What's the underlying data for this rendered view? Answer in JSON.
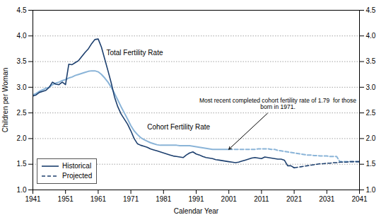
{
  "chart_data": {
    "type": "line",
    "xlabel": "Calendar Year",
    "ylabel": "Children per Woman",
    "xlim": [
      1941,
      2041
    ],
    "xticks": [
      1941,
      1951,
      1961,
      1971,
      1981,
      1991,
      2001,
      2011,
      2021,
      2031,
      2041
    ],
    "ylim": [
      1.0,
      4.5
    ],
    "yticks": [
      {
        "value": 1.0,
        "label": "1.0"
      },
      1.5,
      {
        "value": 2.0,
        "label": "2.0"
      },
      2.5,
      {
        "value": 3.0,
        "label": "3.0"
      },
      3.5,
      {
        "value": 4.0,
        "label": "4.0"
      },
      4.5
    ],
    "grid": true,
    "legend": "lower left",
    "legend_entries": [
      {
        "name": "Historical",
        "line_style": "solid",
        "color": "#1c3f6e"
      },
      {
        "name": "Projected",
        "line_style": "dashed",
        "color": "#1c3f6e"
      }
    ],
    "series": [
      {
        "name": "Cohort Fertility Rate",
        "color": "#8ab4d8",
        "label_x": 1976,
        "label_y": 2.18,
        "segments": [
          {
            "line_style": "solid",
            "x": [
              1941,
              1942,
              1943,
              1944,
              1945,
              1946,
              1947,
              1948,
              1949,
              1950,
              1951,
              1952,
              1953,
              1954,
              1955,
              1956,
              1957,
              1958,
              1959,
              1960,
              1961,
              1962,
              1963,
              1964,
              1965,
              1966,
              1967,
              1968,
              1969,
              1970,
              1971,
              1972,
              1973,
              1974,
              1975,
              1976,
              1977,
              1978,
              1979,
              1980,
              1981,
              1982,
              1983,
              1984,
              1985,
              1986,
              1987,
              1988,
              1989,
              1990,
              1991,
              1992,
              1993,
              1994,
              1995,
              1996,
              1997,
              1998,
              1999,
              2000,
              2001
            ],
            "values": [
              2.85,
              2.88,
              2.92,
              2.95,
              2.98,
              3.0,
              3.05,
              3.08,
              3.1,
              3.13,
              3.15,
              3.18,
              3.2,
              3.23,
              3.25,
              3.27,
              3.29,
              3.31,
              3.32,
              3.32,
              3.3,
              3.25,
              3.18,
              3.1,
              3.0,
              2.88,
              2.75,
              2.62,
              2.5,
              2.38,
              2.25,
              2.15,
              2.08,
              2.02,
              1.98,
              1.95,
              1.92,
              1.9,
              1.88,
              1.87,
              1.87,
              1.87,
              1.87,
              1.87,
              1.87,
              1.86,
              1.86,
              1.86,
              1.86,
              1.85,
              1.84,
              1.83,
              1.82,
              1.81,
              1.8,
              1.79,
              1.79,
              1.79,
              1.79,
              1.79,
              1.79
            ]
          },
          {
            "line_style": "dashed",
            "x": [
              2001,
              2002,
              2003,
              2004,
              2005,
              2006,
              2007,
              2008,
              2009,
              2010,
              2011,
              2012,
              2013,
              2014,
              2015,
              2016,
              2017,
              2018,
              2019,
              2020,
              2021,
              2022,
              2023,
              2024,
              2025,
              2026,
              2027,
              2028,
              2029,
              2030,
              2031,
              2032,
              2033,
              2034,
              2035,
              2036,
              2037,
              2038,
              2039,
              2040,
              2041
            ],
            "values": [
              1.79,
              1.79,
              1.79,
              1.79,
              1.79,
              1.79,
              1.79,
              1.79,
              1.79,
              1.8,
              1.8,
              1.8,
              1.8,
              1.79,
              1.79,
              1.77,
              1.76,
              1.75,
              1.74,
              1.73,
              1.72,
              1.71,
              1.7,
              1.69,
              1.68,
              1.68,
              1.67,
              1.67,
              1.66,
              1.66,
              1.66,
              1.65,
              1.65,
              1.65,
              1.55,
              1.55,
              1.55,
              1.55,
              1.55,
              1.55,
              1.55
            ]
          }
        ]
      },
      {
        "name": "Total Fertility Rate",
        "color": "#1c3f6e",
        "label_x": 1963.5,
        "label_y": 3.62,
        "segments": [
          {
            "line_style": "solid",
            "x": [
              1941,
              1942,
              1943,
              1944,
              1945,
              1946,
              1947,
              1948,
              1949,
              1950,
              1951,
              1952,
              1953,
              1954,
              1955,
              1956,
              1957,
              1958,
              1959,
              1960,
              1961,
              1962,
              1963,
              1964,
              1965,
              1966,
              1967,
              1968,
              1969,
              1970,
              1971,
              1972,
              1973,
              1974,
              1975,
              1976,
              1977,
              1978,
              1979,
              1980,
              1981,
              1982,
              1983,
              1984,
              1985,
              1986,
              1987,
              1988,
              1989,
              1990,
              1991,
              1992,
              1993,
              1994,
              1995,
              1996,
              1997,
              1998,
              1999,
              2000,
              2001,
              2002,
              2003,
              2004,
              2005,
              2006,
              2007,
              2008,
              2009,
              2010,
              2011,
              2012,
              2013,
              2014,
              2015,
              2016,
              2017,
              2018,
              2019,
              2020,
              2021
            ],
            "values": [
              2.83,
              2.85,
              2.9,
              2.92,
              2.94,
              3.0,
              3.1,
              3.06,
              3.05,
              3.1,
              3.05,
              3.45,
              3.44,
              3.48,
              3.52,
              3.6,
              3.68,
              3.75,
              3.85,
              3.93,
              3.94,
              3.78,
              3.55,
              3.32,
              3.08,
              2.81,
              2.62,
              2.48,
              2.38,
              2.28,
              2.15,
              2.0,
              1.9,
              1.87,
              1.85,
              1.83,
              1.8,
              1.78,
              1.76,
              1.74,
              1.72,
              1.7,
              1.68,
              1.66,
              1.65,
              1.64,
              1.63,
              1.68,
              1.72,
              1.74,
              1.7,
              1.68,
              1.65,
              1.63,
              1.62,
              1.61,
              1.59,
              1.58,
              1.57,
              1.56,
              1.55,
              1.54,
              1.53,
              1.54,
              1.56,
              1.58,
              1.6,
              1.62,
              1.63,
              1.62,
              1.61,
              1.64,
              1.63,
              1.62,
              1.61,
              1.6,
              1.6,
              1.58,
              1.47,
              1.47,
              1.43
            ]
          },
          {
            "line_style": "dashed",
            "x": [
              2021,
              2022,
              2023,
              2024,
              2025,
              2026,
              2027,
              2028,
              2029,
              2030,
              2031,
              2032,
              2033,
              2034,
              2035,
              2036,
              2037,
              2038,
              2039,
              2040,
              2041
            ],
            "values": [
              1.43,
              1.44,
              1.45,
              1.46,
              1.47,
              1.48,
              1.49,
              1.5,
              1.51,
              1.51,
              1.52,
              1.52,
              1.53,
              1.53,
              1.54,
              1.54,
              1.54,
              1.55,
              1.55,
              1.55,
              1.55
            ]
          }
        ]
      }
    ],
    "annotations": [
      {
        "text": "Most recent completed cohort fertility rate of 1.79  for those\nborn in 1971.",
        "x": 2001,
        "y": 1.79,
        "text_x": 2016,
        "text_y": 2.68
      }
    ]
  }
}
